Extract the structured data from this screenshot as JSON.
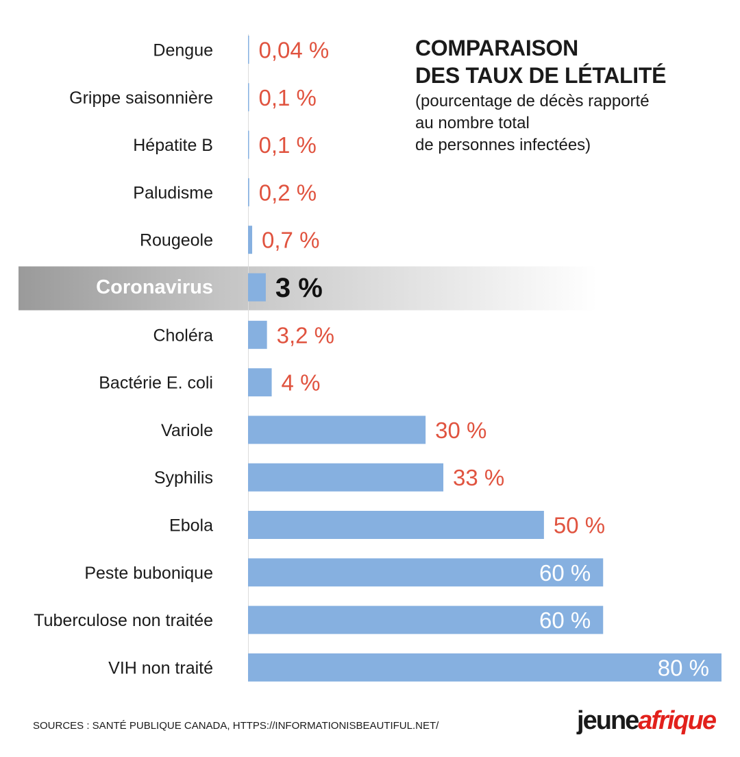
{
  "title": {
    "line1": "COMPARAISON",
    "line2": "DES TAUX DE LÉTALITÉ",
    "subtitle_lines": [
      "(pourcentage de décès rapporté",
      "au nombre total",
      "de personnes infectées)"
    ]
  },
  "chart_data": {
    "type": "bar",
    "orientation": "horizontal",
    "categories": [
      "Dengue",
      "Grippe saisonnière",
      "Hépatite B",
      "Paludisme",
      "Rougeole",
      "Coronavirus",
      "Choléra",
      "Bactérie E. coli",
      "Variole",
      "Syphilis",
      "Ebola",
      "Peste bubonique",
      "Tuberculose non traitée",
      "VIH non traité"
    ],
    "values": [
      0.04,
      0.1,
      0.1,
      0.2,
      0.7,
      3,
      3.2,
      4,
      30,
      33,
      50,
      60,
      60,
      80
    ],
    "value_labels": [
      "0,04 %",
      "0,1 %",
      "0,1 %",
      "0,2 %",
      "0,7 %",
      "3 %",
      "3,2 %",
      "4 %",
      "30 %",
      "33 %",
      "50 %",
      "60 %",
      "60 %",
      "80 %"
    ],
    "highlight": "Coronavirus",
    "xlim": [
      0,
      80
    ],
    "grid": false,
    "legend": "none",
    "bar_color": "#86b0e0",
    "value_label_color": "#e0533f",
    "highlight_band_colors": [
      "#9a9a9a",
      "#ffffff"
    ]
  },
  "footer": {
    "sources": "SOURCES : SANTÉ PUBLIQUE CANADA, HTTPS://INFORMATIONISBEAUTIFUL.NET/",
    "logo_part1": "jeune",
    "logo_part2": "afrique"
  }
}
